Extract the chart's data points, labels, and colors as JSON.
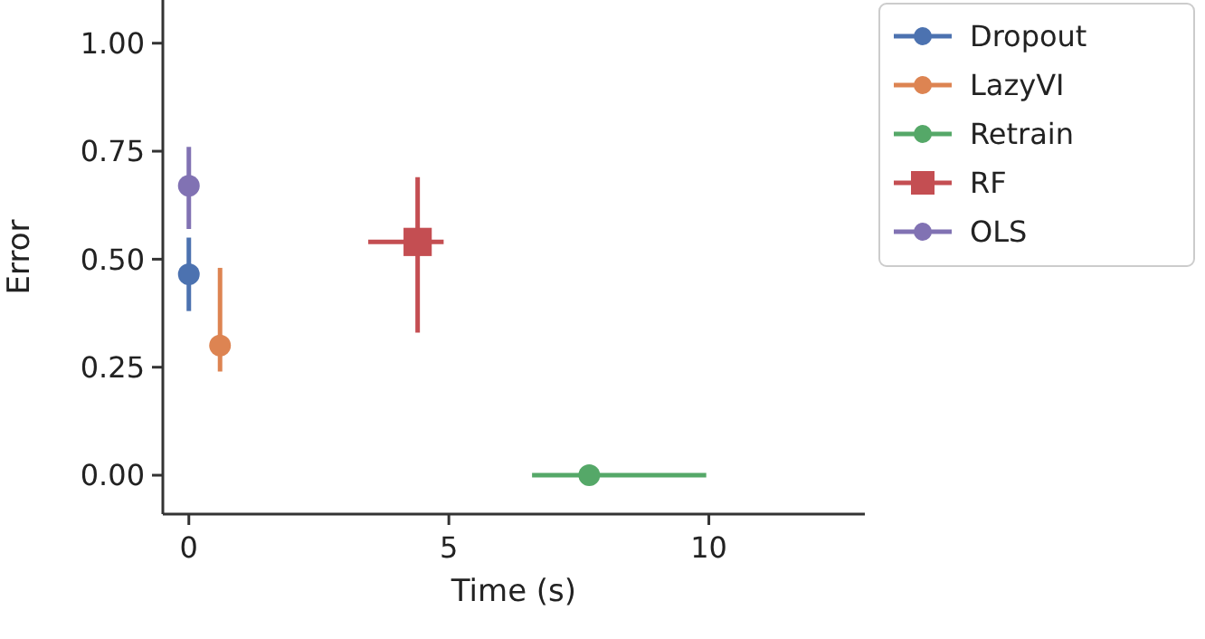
{
  "chart_data": {
    "type": "scatter",
    "xlabel": "Time (s)",
    "ylabel": "Error",
    "xlim": [
      -0.5,
      13
    ],
    "xticks": [
      0,
      5,
      10
    ],
    "ylim": [
      -0.09,
      1.1
    ],
    "yticks": [
      {
        "value": 0,
        "label": "0.00"
      },
      {
        "value": 0.25,
        "label": "0.25"
      },
      {
        "value": 0.5,
        "label": "0.50"
      },
      {
        "value": 0.75,
        "label": "0.75"
      },
      {
        "value": 1,
        "label": "1.00"
      }
    ],
    "grid": false,
    "legend": "top right",
    "marker": "circle",
    "series": [
      {
        "name": "Dropout",
        "color": "#4c72b0",
        "x": [
          0
        ],
        "values": [
          0.465
        ],
        "errors": [
          [
            0.38,
            0.55
          ]
        ]
      },
      {
        "name": "LazyVI",
        "color": "#dd8452",
        "x": [
          0.6
        ],
        "values": [
          0.3
        ],
        "errors": [
          [
            0.24,
            0.48
          ]
        ]
      },
      {
        "name": "Retrain",
        "color": "#55a868",
        "x": [
          7.7
        ],
        "values": [
          0.0
        ],
        "xerrors": [
          [
            6.6,
            9.95
          ]
        ]
      },
      {
        "name": "RF",
        "color": "#c44e52",
        "marker": "square",
        "x": [
          4.4
        ],
        "values": [
          0.54
        ],
        "errors": [
          [
            0.33,
            0.69
          ]
        ],
        "xerrors": [
          [
            3.45,
            4.9
          ]
        ]
      },
      {
        "name": "OLS",
        "color": "#8172b3",
        "x": [
          0
        ],
        "values": [
          0.67
        ],
        "errors": [
          [
            0.57,
            0.76
          ]
        ]
      }
    ]
  }
}
